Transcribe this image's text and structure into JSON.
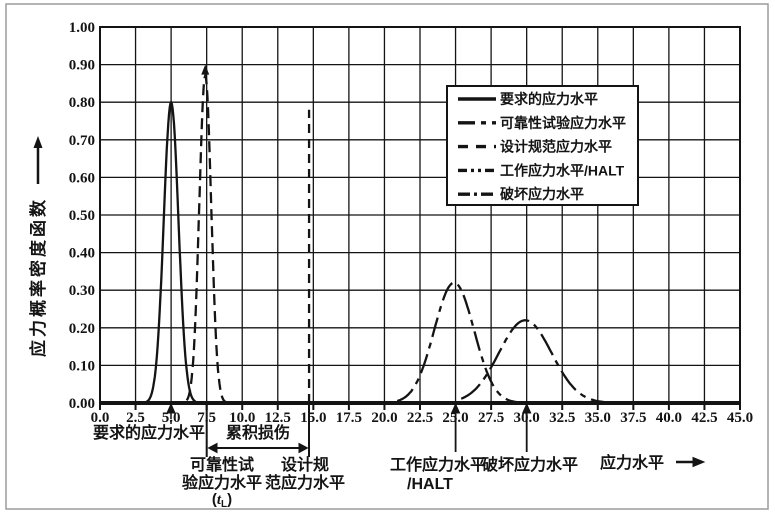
{
  "figure": {
    "background": "#ffffff",
    "outer_border_color": "#9c9c9c",
    "ink_color": "#141414"
  },
  "y_axis": {
    "title": "应力概率密度函数",
    "ticks": [
      "1.00",
      "0.90",
      "0.80",
      "0.70",
      "0.60",
      "0.50",
      "0.40",
      "0.30",
      "0.20",
      "0.10",
      "0.00"
    ],
    "range": [
      0,
      1
    ]
  },
  "x_axis": {
    "title": "应力水平",
    "ticks": [
      "0.0",
      "2.5",
      "5.0",
      "7.5",
      "10.0",
      "12.5",
      "15.0",
      "17.5",
      "20.0",
      "22.5",
      "25.0",
      "27.5",
      "30.0",
      "32.5",
      "35.0",
      "37.5",
      "40.0",
      "42.5",
      "45.0"
    ],
    "range": [
      0,
      45
    ]
  },
  "legend": {
    "items": [
      {
        "label": "要求的应力水平",
        "dash": ""
      },
      {
        "label": "可靠性试验应力水平",
        "dash": "17 6 5 6"
      },
      {
        "label": "设计规范应力水平",
        "dash": "10 8"
      },
      {
        "label": "工作应力水平/HALT",
        "dash": "9 4 3 4 3 4"
      },
      {
        "label": "破坏应力水平",
        "dash": "12 4 3 4"
      }
    ]
  },
  "chart_data": {
    "type": "line",
    "title": "",
    "xlabel": "应力水平",
    "ylabel": "应力概率密度函数",
    "xlim": [
      0,
      45
    ],
    "ylim": [
      0,
      1
    ],
    "grid": true,
    "x_gridstep": 2.5,
    "y_gridstep": 0.1,
    "legend_position": "upper right area inside plot",
    "series": [
      {
        "name": "要求的应力水平",
        "shape": "gaussian",
        "mu": 5.0,
        "sigma": 0.52,
        "amplitude": 0.8,
        "x_range": [
          3.0,
          7.2
        ],
        "dash": ""
      },
      {
        "name": "可靠性试验应力水平",
        "shape": "gaussian",
        "mu": 7.4,
        "sigma": 0.42,
        "amplitude": 0.87,
        "x_range": [
          6.1,
          9.2
        ],
        "dash": "11 6",
        "arrow_top": true,
        "arrow_tip_value": 0.9
      },
      {
        "name": "设计规范应力水平",
        "shape": "vline",
        "x": 14.7,
        "y_top": 0.78,
        "dash": "9 6"
      },
      {
        "name": "工作应力水平/HALT",
        "shape": "gaussian",
        "mu": 24.9,
        "sigma": 1.4,
        "amplitude": 0.32,
        "x_range": [
          20.9,
          29.3
        ],
        "dash": "20 6 6 6"
      },
      {
        "name": "破坏应力水平",
        "shape": "gaussian",
        "mu": 29.9,
        "sigma": 1.85,
        "amplitude": 0.22,
        "x_range": [
          25.4,
          35.5
        ],
        "dash": "24 6 6 6"
      }
    ]
  },
  "annotations": {
    "required": "要求的应力水平",
    "cumulative_damage": "累积损伤",
    "reliability_line1": "可靠性试",
    "reliability_line2": "验应力水平",
    "reliability_sub": {
      "pre": "(",
      "sym": "t",
      "sub": "L",
      "post": ")"
    },
    "design_line1": "设计规",
    "design_line2": "范应力水平",
    "working_line1": "工作应力水平",
    "working_line2": "/HALT",
    "damage": "破坏应力水平",
    "x_axis_title": "应力水平"
  }
}
